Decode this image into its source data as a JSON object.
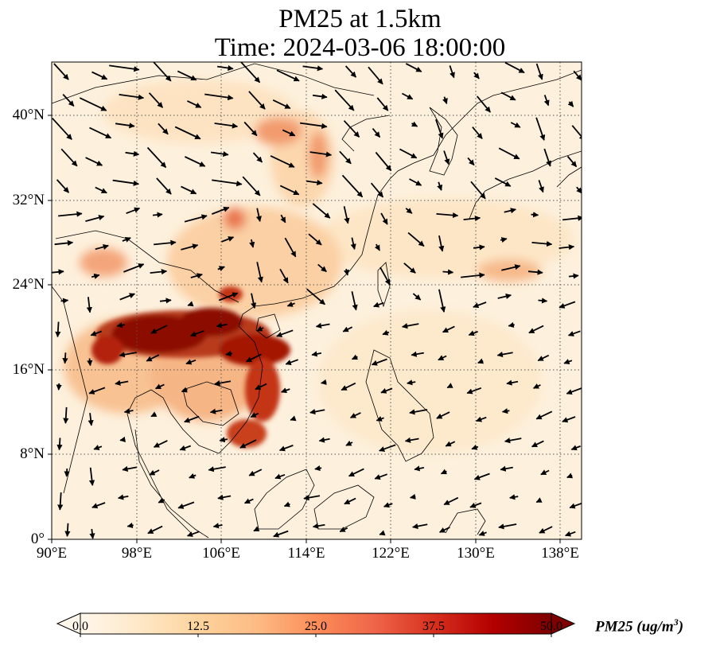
{
  "title_line1": "PM25 at 1.5km",
  "title_line2": "Time: 2024-03-06 18:00:00",
  "map": {
    "lon_range": [
      90,
      140
    ],
    "lat_range": [
      0,
      45
    ],
    "lat_ticks": [
      "40°N",
      "32°N",
      "24°N",
      "16°N",
      "8°N",
      "0°"
    ],
    "lon_ticks": [
      "90°E",
      "98°E",
      "106°E",
      "114°E",
      "122°E",
      "130°E",
      "138°E"
    ],
    "gridlines": "dotted",
    "vectors": "wind arrows",
    "colormap": "OrRd"
  },
  "colorbar": {
    "label_main": "PM25 (ug/m",
    "label_sup": "3",
    "label_end": ")",
    "ticks": [
      "0.0",
      "12.5",
      "25.0",
      "37.5",
      "50.0"
    ],
    "min": 0,
    "max": 50,
    "extend": "both",
    "colors": [
      "#fff7ec",
      "#fee8c8",
      "#fdd49e",
      "#fdbb84",
      "#fc8d59",
      "#ef6548",
      "#d7301f",
      "#b30000",
      "#7f0000"
    ]
  }
}
